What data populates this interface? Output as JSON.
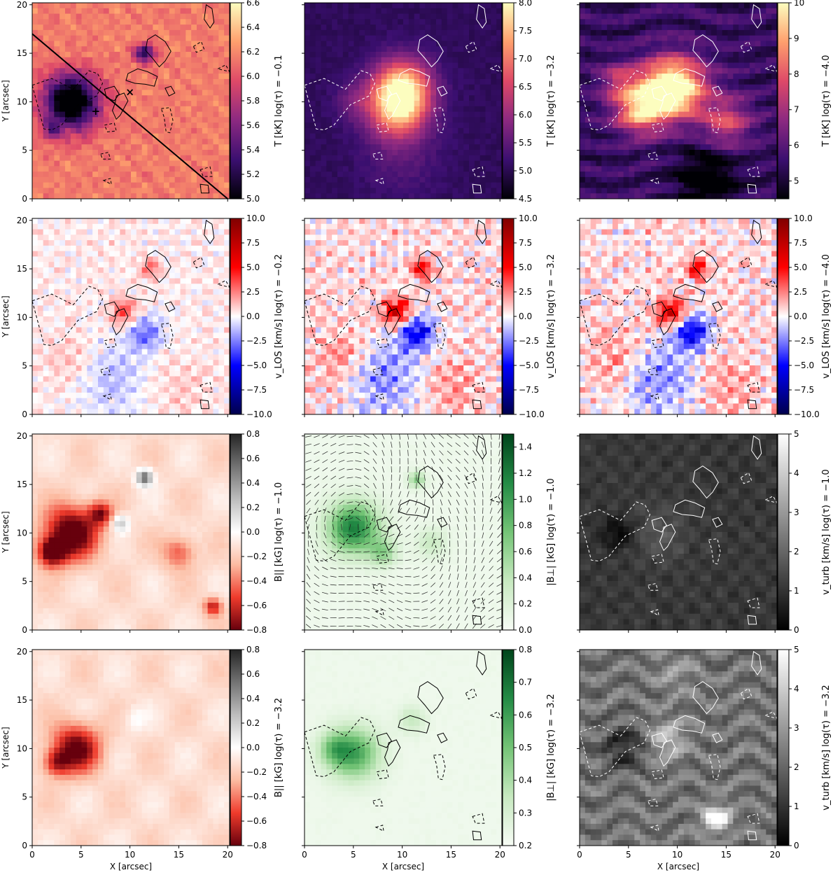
{
  "figure": {
    "rows": 4,
    "cols": 3,
    "x_axis_label": "X [arcsec]",
    "y_axis_label": "Y [arcsec]",
    "x_ticks": [
      "0",
      "5",
      "10",
      "15",
      "20"
    ],
    "y_ticks": [
      "0",
      "5",
      "10",
      "15",
      "20"
    ],
    "xlim": [
      0,
      20.2
    ],
    "ylim": [
      0,
      20.2
    ]
  },
  "chart_data": [
    {
      "type": "heatmap",
      "row": 0,
      "col": 0,
      "colormap": "inferno-like",
      "colors": [
        "#000004",
        "#3b0f70",
        "#8c2981",
        "#de4968",
        "#fe9f6d",
        "#fcfdbf"
      ],
      "colorbar_label": "T [kK] log(τ) = −0.1",
      "clim": [
        5.0,
        6.6
      ],
      "colorbar_ticks": [
        "5.0",
        "5.2",
        "5.4",
        "5.6",
        "5.8",
        "6.0",
        "6.2",
        "6.4",
        "6.6"
      ],
      "contour_color": "#000000",
      "overlay": {
        "line_from": [
          0,
          17
        ],
        "line_to": [
          20,
          0
        ],
        "markers": [
          {
            "symbol": "+",
            "x": 6.5,
            "y": 9
          },
          {
            "symbol": "×",
            "x": 10,
            "y": 11
          }
        ]
      }
    },
    {
      "type": "heatmap",
      "row": 0,
      "col": 1,
      "colormap": "inferno-like",
      "colors": [
        "#000004",
        "#3b0f70",
        "#8c2981",
        "#de4968",
        "#fe9f6d",
        "#fcfdbf"
      ],
      "colorbar_label": "T [kK] log(τ) = −3.2",
      "clim": [
        4.5,
        8.0
      ],
      "colorbar_ticks": [
        "4.5",
        "5.0",
        "5.5",
        "6.0",
        "6.5",
        "7.0",
        "7.5",
        "8.0"
      ],
      "contour_color": "#ffffff"
    },
    {
      "type": "heatmap",
      "row": 0,
      "col": 2,
      "colormap": "inferno-like",
      "colors": [
        "#000004",
        "#3b0f70",
        "#8c2981",
        "#de4968",
        "#fe9f6d",
        "#fcfdbf"
      ],
      "colorbar_label": "T [kK] log(τ) = −4.0",
      "clim": [
        4.5,
        10
      ],
      "colorbar_ticks": [
        "5",
        "6",
        "7",
        "8",
        "9",
        "10"
      ],
      "contour_color": "#ffffff"
    },
    {
      "type": "heatmap",
      "row": 1,
      "col": 0,
      "colormap": "seismic-like",
      "colors": [
        "#00004c",
        "#0000ff",
        "#ffffff",
        "#ff0000",
        "#800000"
      ],
      "colorbar_label": "v_LOS [km/s] log(τ) = −0.2",
      "clim": [
        -10,
        10
      ],
      "colorbar_ticks": [
        "−10.0",
        "−7.5",
        "−5.0",
        "−2.5",
        "0.0",
        "2.5",
        "5.0",
        "7.5",
        "10.0"
      ],
      "contour_color": "#000000"
    },
    {
      "type": "heatmap",
      "row": 1,
      "col": 1,
      "colormap": "seismic-like",
      "colors": [
        "#00004c",
        "#0000ff",
        "#ffffff",
        "#ff0000",
        "#800000"
      ],
      "colorbar_label": "v_LOS [km/s] log(τ) = −3.2",
      "clim": [
        -10,
        10
      ],
      "colorbar_ticks": [
        "−10.0",
        "−7.5",
        "−5.0",
        "−2.5",
        "0.0",
        "2.5",
        "5.0",
        "7.5",
        "10.0"
      ],
      "contour_color": "#000000"
    },
    {
      "type": "heatmap",
      "row": 1,
      "col": 2,
      "colormap": "seismic-like",
      "colors": [
        "#00004c",
        "#0000ff",
        "#ffffff",
        "#ff0000",
        "#800000"
      ],
      "colorbar_label": "v_LOS [km/s] log(τ) = −4.0",
      "clim": [
        -10,
        10
      ],
      "colorbar_ticks": [
        "−10.0",
        "−7.5",
        "−5.0",
        "−2.5",
        "0.0",
        "2.5",
        "5.0",
        "7.5",
        "10.0"
      ],
      "contour_color": "#000000"
    },
    {
      "type": "heatmap",
      "row": 2,
      "col": 0,
      "colormap": "reds-greys",
      "colors": [
        "#67000d",
        "#ef3b2c",
        "#fcbba1",
        "#ffffff",
        "#bdbdbd",
        "#737373",
        "#252525"
      ],
      "colorbar_label": "B|| [kG] log(τ) = −1.0",
      "clim": [
        -0.8,
        0.8
      ],
      "colorbar_ticks": [
        "−0.8",
        "−0.6",
        "−0.4",
        "−0.2",
        "0.0",
        "0.2",
        "0.4",
        "0.6",
        "0.8"
      ],
      "contour_color": null
    },
    {
      "type": "heatmap",
      "row": 2,
      "col": 1,
      "colormap": "greens",
      "colors": [
        "#f7fcf5",
        "#c7e9c0",
        "#74c476",
        "#238b45",
        "#00441b"
      ],
      "colorbar_label": "|B⊥| [kG] log(τ) = −1.0",
      "clim": [
        0.0,
        1.5
      ],
      "colorbar_ticks": [
        "0.0",
        "0.2",
        "0.4",
        "0.6",
        "0.8",
        "1.0",
        "1.2",
        "1.4"
      ],
      "contour_color": "#000000",
      "overlay": {
        "vector_field": true
      }
    },
    {
      "type": "heatmap",
      "row": 2,
      "col": 2,
      "colormap": "greys",
      "colors": [
        "#000000",
        "#ffffff"
      ],
      "colorbar_label": "v_turb [km/s] log(τ) = −1.0",
      "clim": [
        0,
        5
      ],
      "colorbar_ticks": [
        "0",
        "1",
        "2",
        "3",
        "4",
        "5"
      ],
      "contour_color": "#ffffff"
    },
    {
      "type": "heatmap",
      "row": 3,
      "col": 0,
      "colormap": "reds-greys",
      "colors": [
        "#67000d",
        "#ef3b2c",
        "#fcbba1",
        "#ffffff",
        "#bdbdbd",
        "#737373",
        "#252525"
      ],
      "colorbar_label": "B|| [kG] log(τ) = −3.2",
      "clim": [
        -0.8,
        0.8
      ],
      "colorbar_ticks": [
        "−0.8",
        "−0.6",
        "−0.4",
        "−0.2",
        "0.0",
        "0.2",
        "0.4",
        "0.6",
        "0.8"
      ],
      "contour_color": null
    },
    {
      "type": "heatmap",
      "row": 3,
      "col": 1,
      "colormap": "greens",
      "colors": [
        "#f7fcf5",
        "#c7e9c0",
        "#74c476",
        "#238b45",
        "#00441b"
      ],
      "colorbar_label": "|B⊥| [kG] log(τ) = −3.2",
      "clim": [
        0.2,
        0.8
      ],
      "colorbar_ticks": [
        "0.2",
        "0.3",
        "0.4",
        "0.5",
        "0.6",
        "0.7",
        "0.8"
      ],
      "contour_color": "#000000"
    },
    {
      "type": "heatmap",
      "row": 3,
      "col": 2,
      "colormap": "greys",
      "colors": [
        "#000000",
        "#ffffff"
      ],
      "colorbar_label": "v_turb [km/s] log(τ) = −3.2",
      "clim": [
        0,
        5
      ],
      "colorbar_ticks": [
        "0",
        "1",
        "2",
        "3",
        "4",
        "5"
      ],
      "contour_color": "#ffffff"
    }
  ]
}
